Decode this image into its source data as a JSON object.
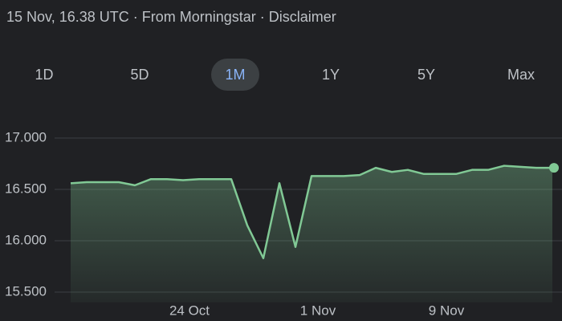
{
  "header": {
    "text": "15 Nov, 16.38 UTC · From Morningstar · Disclaimer"
  },
  "range_selector": {
    "options": [
      "1D",
      "5D",
      "1M",
      "1Y",
      "5Y",
      "Max"
    ],
    "selected": 2
  },
  "chart_data": {
    "type": "line",
    "categories": [
      null,
      null,
      null,
      null,
      null,
      null,
      null,
      "24 Oct",
      null,
      null,
      null,
      null,
      null,
      null,
      null,
      "1 Nov",
      null,
      null,
      null,
      null,
      null,
      null,
      null,
      "9 Nov",
      null,
      null,
      null,
      null,
      null,
      null,
      null
    ],
    "values": [
      16.56,
      16.57,
      16.57,
      16.57,
      16.54,
      16.6,
      16.6,
      16.59,
      16.6,
      16.6,
      16.6,
      16.15,
      15.83,
      16.56,
      15.94,
      16.63,
      16.63,
      16.63,
      16.64,
      16.71,
      16.67,
      16.69,
      16.65,
      16.65,
      16.65,
      16.69,
      16.69,
      16.73,
      16.72,
      16.71,
      16.71
    ],
    "color": "#81c995",
    "ylim": [
      15.4,
      17.1
    ],
    "yticks": [
      {
        "value": 17,
        "label": "17.000"
      },
      {
        "value": 16.5,
        "label": "16.500"
      },
      {
        "value": 16,
        "label": "16.000"
      },
      {
        "value": 15.5,
        "label": "15.500"
      }
    ],
    "grid": true
  }
}
